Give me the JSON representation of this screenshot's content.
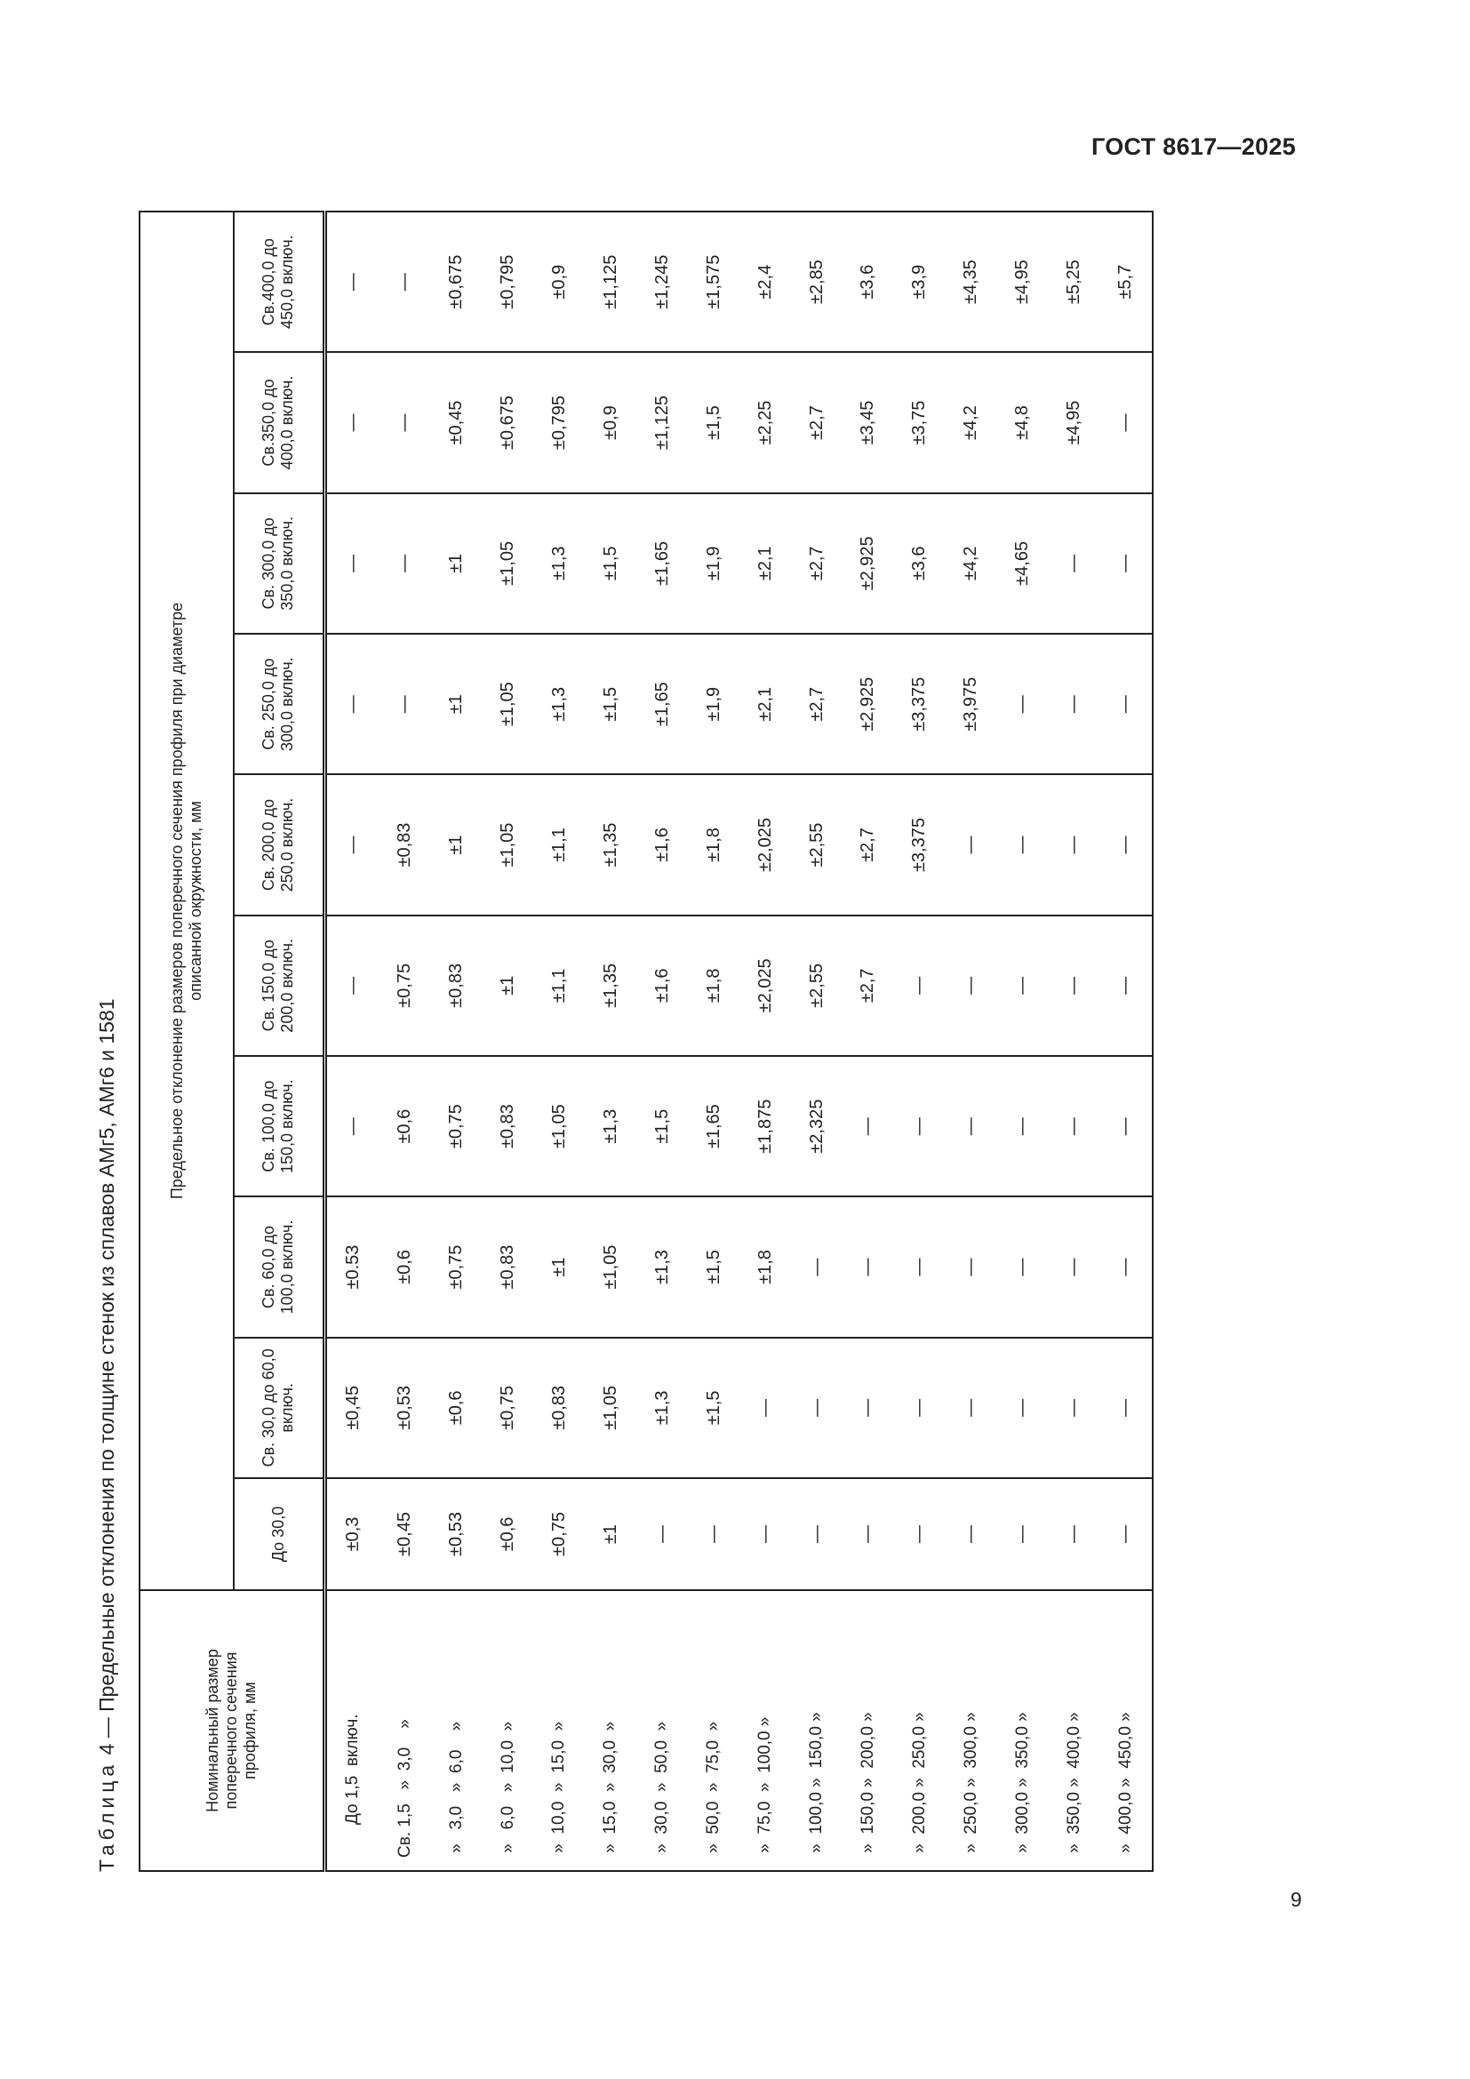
{
  "header": {
    "document_code": "ГОСТ 8617—2025"
  },
  "page_number": "9",
  "table": {
    "caption_prefix": "Таблица",
    "caption_rest": " 4 — Предельные отклонения по толщине стенок из сплавов АМг5, АМг6 и 1581",
    "row_header": "Номинальный размер поперечного сечения профиля, мм",
    "group_header": "Предельное отклонение размеров поперечного сечения профиля при диаметре описанной окружности, мм",
    "columns": [
      "До 30,0",
      "Св. 30,0 до 60,0 включ.",
      "Св. 60,0 до 100,0 включ.",
      "Св. 100,0 до 150,0 включ.",
      "Св. 150,0 до 200,0 включ.",
      "Св. 200,0 до 250,0 включ.",
      "Св. 250,0 до 300,0 включ.",
      "Св. 300,0 до 350,0 включ.",
      "Св.350,0 до 400,0 включ.",
      "Св.400,0 до 450,0 включ."
    ],
    "rows": [
      {
        "label": "       До 1,5  включ.",
        "values": [
          "±0,3",
          "±0,45",
          "±0.53",
          "—",
          "—",
          "—",
          "—",
          "—",
          "—",
          "—"
        ]
      },
      {
        "label": "Св. 1,5   »  3,0    »",
        "values": [
          "±0,45",
          "±0,53",
          "±0,6",
          "±0,6",
          "±0,75",
          "±0,83",
          "—",
          "—",
          "—",
          "—"
        ]
      },
      {
        "label": " »   3,0   »  6,0    »",
        "values": [
          "±0,53",
          "±0,6",
          "±0,75",
          "±0,75",
          "±0,83",
          "±1",
          "±1",
          "±1",
          "±0,45",
          "±0,675"
        ]
      },
      {
        "label": " »   6,0   »  10,0  »",
        "values": [
          "±0,6",
          "±0,75",
          "±0,83",
          "±0,83",
          "±1",
          "±1,05",
          "±1,05",
          "±1,05",
          "±0,675",
          "±0,795"
        ]
      },
      {
        "label": " »  10,0  »  15,0  »",
        "values": [
          "±0,75",
          "±0,83",
          "±1",
          "±1,05",
          "±1,1",
          "±1,1",
          "±1,3",
          "±1,3",
          "±0,795",
          "±0,9"
        ]
      },
      {
        "label": " »  15,0  »  30,0  »",
        "values": [
          "±1",
          "±1,05",
          "±1,05",
          "±1,3",
          "±1,35",
          "±1,35",
          "±1,5",
          "±1,5",
          "±0,9",
          "±1,125"
        ]
      },
      {
        "label": " »  30,0  »  50,0  »",
        "values": [
          "—",
          "±1,3",
          "±1,3",
          "±1,5",
          "±1,6",
          "±1,6",
          "±1,65",
          "±1,65",
          "±1,125",
          "±1,245"
        ]
      },
      {
        "label": " »  50,0  »  75,0  »",
        "values": [
          "—",
          "±1,5",
          "±1,5",
          "±1,65",
          "±1,8",
          "±1,8",
          "±1,9",
          "±1,9",
          "±1,5",
          "±1,575"
        ]
      },
      {
        "label": " »  75,0  »  100,0 »",
        "values": [
          "—",
          "—",
          "±1,8",
          "±1,875",
          "±2,025",
          "±2,025",
          "±2,1",
          "±2,1",
          "±2,25",
          "±2,4"
        ]
      },
      {
        "label": " »  100,0 »  150,0 »",
        "values": [
          "—",
          "—",
          "—",
          "±2,325",
          "±2,55",
          "±2,55",
          "±2,7",
          "±2,7",
          "±2,7",
          "±2,85"
        ]
      },
      {
        "label": " »  150,0 »  200,0 »",
        "values": [
          "—",
          "—",
          "—",
          "—",
          "±2,7",
          "±2,7",
          "±2,925",
          "±2,925",
          "±3,45",
          "±3,6"
        ]
      },
      {
        "label": " »  200,0 »  250,0 »",
        "values": [
          "—",
          "—",
          "—",
          "—",
          "—",
          "±3,375",
          "±3,375",
          "±3,6",
          "±3,75",
          "±3,9"
        ]
      },
      {
        "label": " »  250,0 »  300,0 »",
        "values": [
          "—",
          "—",
          "—",
          "—",
          "—",
          "—",
          "±3,975",
          "±4,2",
          "±4,2",
          "±4,35"
        ]
      },
      {
        "label": " »  300,0 »  350,0 »",
        "values": [
          "—",
          "—",
          "—",
          "—",
          "—",
          "—",
          "—",
          "±4,65",
          "±4,8",
          "±4,95"
        ]
      },
      {
        "label": " »  350,0 »  400,0 »",
        "values": [
          "—",
          "—",
          "—",
          "—",
          "—",
          "—",
          "—",
          "—",
          "±4,95",
          "±5,25"
        ]
      },
      {
        "label": " »  400,0 »  450,0 »",
        "values": [
          "—",
          "—",
          "—",
          "—",
          "—",
          "—",
          "—",
          "—",
          "—",
          "±5,7"
        ]
      }
    ]
  }
}
